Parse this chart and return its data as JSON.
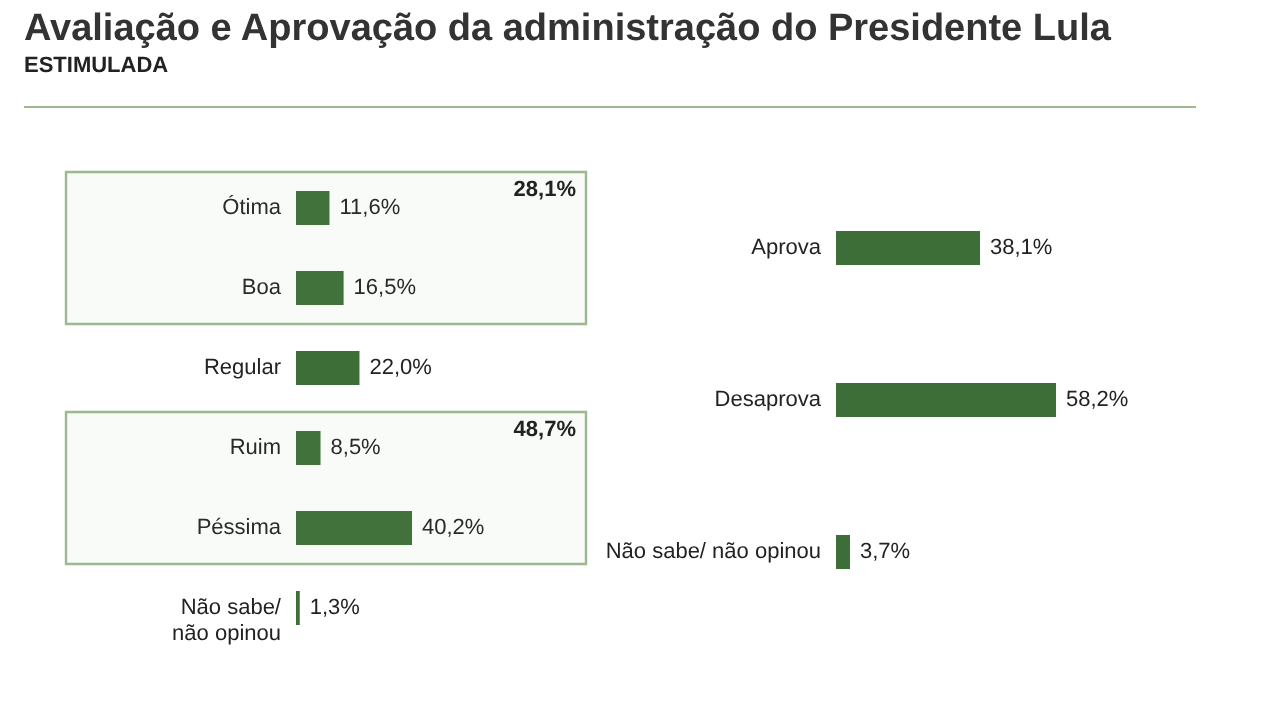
{
  "chart_data": [
    {
      "type": "bar",
      "orientation": "horizontal",
      "title": "Avaliação e Aprovação da administração do Presidente Lula",
      "subtitle": "ESTIMULADA",
      "categories": [
        "Ótima",
        "Boa",
        "Regular",
        "Ruim",
        "Péssima",
        "Não sabe/ não opinou"
      ],
      "values": [
        11.6,
        16.5,
        22.0,
        8.5,
        40.2,
        1.3
      ],
      "value_labels": [
        "11,6%",
        "16,5%",
        "22,0%",
        "8,5%",
        "40,2%",
        "1,3%"
      ],
      "color": "#3d6e38",
      "bands": [
        {
          "axis": "y",
          "from": "Ótima",
          "to": "Boa",
          "label": "28,1%",
          "color": "#9db88f"
        },
        {
          "axis": "y",
          "from": "Ruim",
          "to": "Péssima",
          "label": "48,7%",
          "color": "#9db88f"
        }
      ]
    },
    {
      "type": "bar",
      "orientation": "horizontal",
      "categories": [
        "Aprova",
        "Desaprova",
        "Não sabe/ não opinou"
      ],
      "values": [
        38.1,
        58.2,
        3.7
      ],
      "value_labels": [
        "38,1%",
        "58,2%",
        "3,7%"
      ],
      "color": "#3d6e38"
    }
  ]
}
